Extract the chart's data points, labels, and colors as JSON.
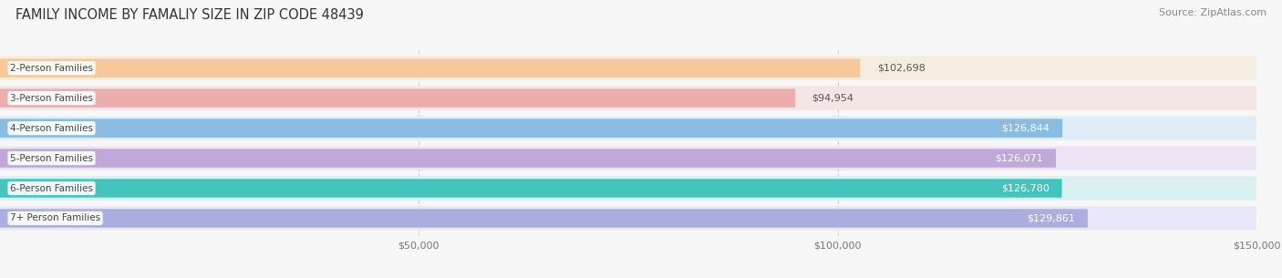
{
  "title": "FAMILY INCOME BY FAMALIY SIZE IN ZIP CODE 48439",
  "source": "Source: ZipAtlas.com",
  "categories": [
    "2-Person Families",
    "3-Person Families",
    "4-Person Families",
    "5-Person Families",
    "6-Person Families",
    "7+ Person Families"
  ],
  "values": [
    102698,
    94954,
    126844,
    126071,
    126780,
    129861
  ],
  "labels": [
    "$102,698",
    "$94,954",
    "$126,844",
    "$126,071",
    "$126,780",
    "$129,861"
  ],
  "bar_colors": [
    "#f7c99a",
    "#eeadad",
    "#89bce0",
    "#c0a8d8",
    "#45c4be",
    "#abaede"
  ],
  "bar_bg_colors": [
    "#f5ede0",
    "#f5e5e5",
    "#e0edf7",
    "#ece4f5",
    "#d8f0ef",
    "#e8e8f8"
  ],
  "label_colors": [
    "#555555",
    "#555555",
    "#ffffff",
    "#ffffff",
    "#ffffff",
    "#ffffff"
  ],
  "label_inside": [
    false,
    false,
    true,
    true,
    true,
    true
  ],
  "xlim": [
    0,
    150000
  ],
  "xticks": [
    50000,
    100000,
    150000
  ],
  "xticklabels": [
    "$50,000",
    "$100,000",
    "$150,000"
  ],
  "figsize": [
    14.06,
    3.05
  ],
  "dpi": 100,
  "title_fontsize": 10.5,
  "bar_label_fontsize": 8,
  "category_fontsize": 7.5,
  "source_fontsize": 8,
  "bg_color": "#f7f7f7"
}
